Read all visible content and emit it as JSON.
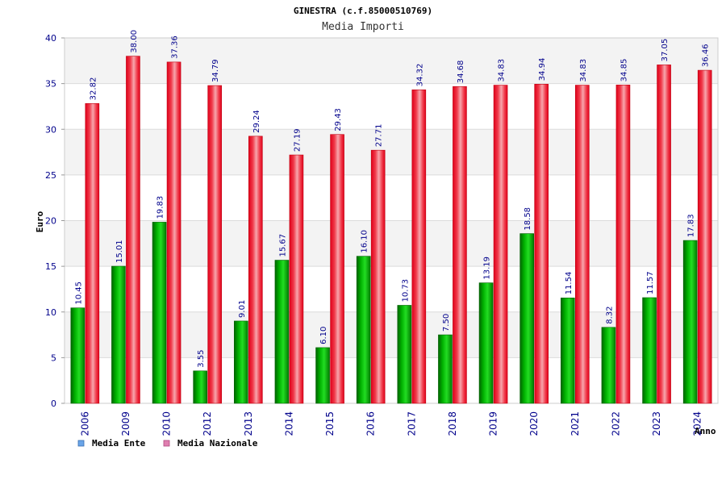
{
  "chart_data": {
    "type": "bar",
    "title": "GINESTRA (c.f.85000510769)",
    "subtitle": "Media Importi",
    "ylabel": "Euro",
    "xlabel": "Anno",
    "ylim": [
      0,
      40
    ],
    "yticks": [
      0,
      5,
      10,
      15,
      20,
      25,
      30,
      35,
      40
    ],
    "categories": [
      "2006",
      "2009",
      "2010",
      "2012",
      "2013",
      "2014",
      "2015",
      "2016",
      "2017",
      "2018",
      "2019",
      "2020",
      "2021",
      "2022",
      "2023",
      "2024"
    ],
    "series": [
      {
        "name": "Media Ente",
        "color": "#00aa00",
        "legend_color": "#6aa5e8",
        "values": [
          10.45,
          15.01,
          19.83,
          3.55,
          9.01,
          15.67,
          6.1,
          16.1,
          10.73,
          7.5,
          13.19,
          18.58,
          11.54,
          8.32,
          11.57,
          17.83
        ],
        "labels": [
          "10.45",
          "15.01",
          "19.83",
          "3.55",
          "9.01",
          "15.67",
          "6.10",
          "16.10",
          "10.73",
          "7.50",
          "13.19",
          "18.58",
          "11.54",
          "8.32",
          "11.57",
          "17.83"
        ]
      },
      {
        "name": "Media Nazionale",
        "color": "#e8141c",
        "legend_color": "#e07fb0",
        "values": [
          32.82,
          38.0,
          37.36,
          34.79,
          29.24,
          27.19,
          29.43,
          27.71,
          34.32,
          34.68,
          34.83,
          34.94,
          34.83,
          34.85,
          37.05,
          36.46
        ],
        "labels": [
          "32.82",
          "38.00",
          "37.36",
          "34.79",
          "29.24",
          "27.19",
          "29.43",
          "27.71",
          "34.32",
          "34.68",
          "34.83",
          "34.94",
          "34.83",
          "34.85",
          "37.05",
          "36.46"
        ]
      }
    ],
    "grid": true,
    "legend": "bottom-left"
  }
}
